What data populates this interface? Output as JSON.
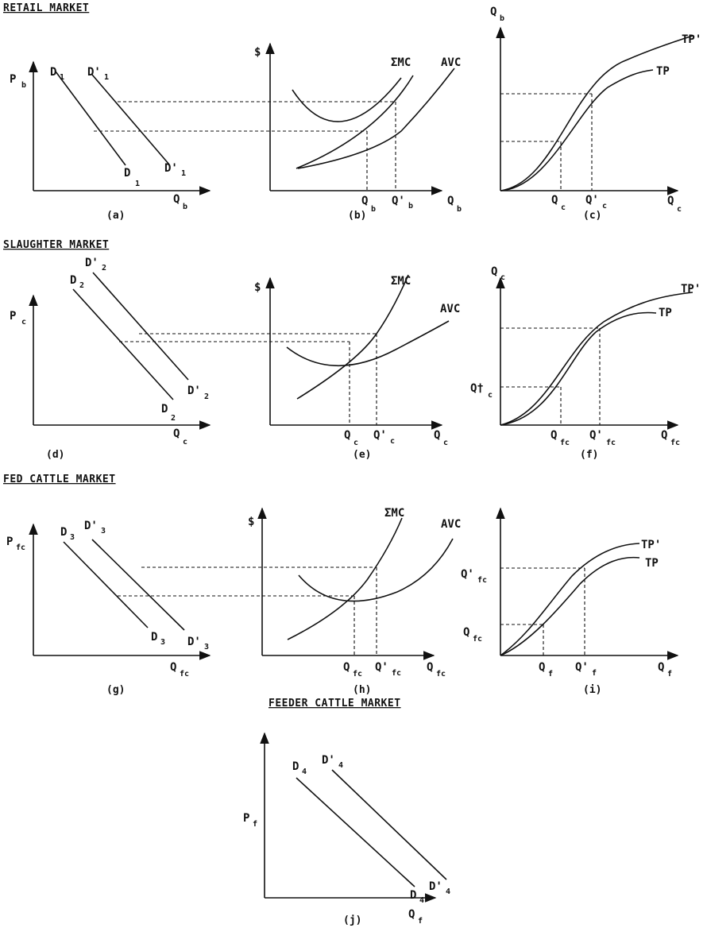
{
  "sections": {
    "retail": "RETAIL MARKET",
    "slaughter": "SLAUGHTER MARKET",
    "fed": "FED CATTLE MARKET",
    "feeder": "FEEDER CATTLE MARKET"
  },
  "panels": {
    "a": {
      "caption": "(a)",
      "y_axis": "P",
      "y_sub": "b",
      "x_axis": "Q",
      "x_sub": "b",
      "d_top": "D",
      "d_top_sub": "1",
      "d_prime_top": "D'",
      "d_prime_top_sub": "1",
      "d_bot": "D",
      "d_bot_sub": "1",
      "d_prime_bot": "D'",
      "d_prime_bot_sub": "1"
    },
    "b": {
      "caption": "(b)",
      "y_axis": "$",
      "x_axis": "Q",
      "x_sub": "b",
      "mc": "ΣMC",
      "avc": "AVC",
      "q1": "Q",
      "q1_sub": "b",
      "q2": "Q'",
      "q2_sub": "b"
    },
    "c": {
      "caption": "(c)",
      "y_axis": "Q",
      "y_sub": "b",
      "x_axis": "Q",
      "x_sub": "c",
      "tp": "TP",
      "tp_prime": "TP'",
      "q1": "Q",
      "q1_sub": "c",
      "q2": "Q'",
      "q2_sub": "c"
    },
    "d": {
      "caption": "(d)",
      "y_axis": "P",
      "y_sub": "c",
      "x_axis": "Q",
      "x_sub": "c",
      "d_top": "D",
      "d_top_sub": "2",
      "d_prime_top": "D'",
      "d_prime_top_sub": "2",
      "d_bot": "D",
      "d_bot_sub": "2",
      "d_prime_bot": "D'",
      "d_prime_bot_sub": "2"
    },
    "e": {
      "caption": "(e)",
      "y_axis": "$",
      "x_axis": "Q",
      "x_sub": "c",
      "mc": "ΣMC",
      "avc": "AVC",
      "q1": "Q",
      "q1_sub": "c",
      "q2": "Q'",
      "q2_sub": "c"
    },
    "f": {
      "caption": "(f)",
      "y_axis": "Q",
      "y_sub": "c",
      "x_axis": "Q",
      "x_sub": "fc",
      "tp": "TP",
      "tp_prime": "TP'",
      "q1": "Q",
      "q1_sub": "fc",
      "q2": "Q'",
      "q2_sub": "fc",
      "qy": "Q†",
      "qy_sub": "c"
    },
    "g": {
      "caption": "(g)",
      "y_axis": "P",
      "y_sub": "fc",
      "x_axis": "Q",
      "x_sub": "fc",
      "d_top": "D",
      "d_top_sub": "3",
      "d_prime_top": "D'",
      "d_prime_top_sub": "3",
      "d_bot": "D",
      "d_bot_sub": "3",
      "d_prime_bot": "D'",
      "d_prime_bot_sub": "3"
    },
    "h": {
      "caption": "(h)",
      "y_axis": "$",
      "x_axis": "Q",
      "x_sub": "fc",
      "mc": "ΣMC",
      "avc": "AVC",
      "q1": "Q",
      "q1_sub": "fc",
      "q2": "Q'",
      "q2_sub": "fc"
    },
    "i": {
      "caption": "(i)",
      "x_axis": "Q",
      "x_sub": "f",
      "tp": "TP",
      "tp_prime": "TP'",
      "q1": "Q",
      "q1_sub": "f",
      "q2": "Q'",
      "q2_sub": "f",
      "qy_top": "Q'",
      "qy_top_sub": "fc",
      "qy_bot": "Q",
      "qy_bot_sub": "fc"
    },
    "j": {
      "caption": "(j)",
      "y_axis": "P",
      "y_sub": "f",
      "x_axis": "Q",
      "x_sub": "f",
      "d_top": "D",
      "d_top_sub": "4",
      "d_prime_top": "D'",
      "d_prime_top_sub": "4",
      "d_bot": "D",
      "d_bot_sub": "4",
      "d_prime_bot": "D'",
      "d_prime_bot_sub": "4"
    }
  }
}
